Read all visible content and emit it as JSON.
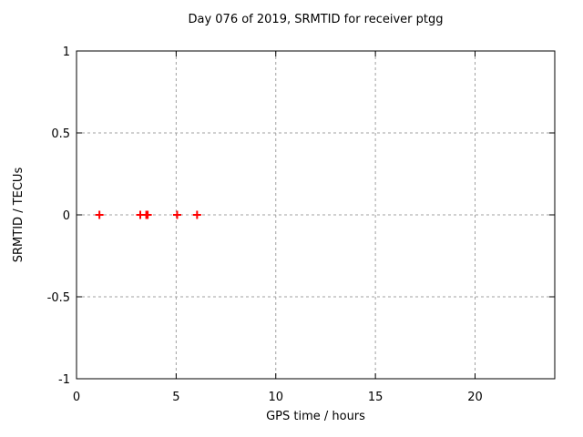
{
  "chart_data": {
    "type": "scatter",
    "title": "Day 076 of 2019, SRMTID for receiver ptgg",
    "xlabel": "GPS time / hours",
    "ylabel": "SRMTID / TECUs",
    "xlim": [
      0,
      24
    ],
    "ylim": [
      -1,
      1
    ],
    "xticks": [
      0,
      5,
      10,
      15,
      20
    ],
    "xtick_labels": [
      "0",
      "5",
      "10",
      "15",
      "20"
    ],
    "yticks": [
      -1,
      -0.5,
      0,
      0.5,
      1
    ],
    "ytick_labels": [
      "-1",
      "-0.5",
      "0",
      "0.5",
      "1"
    ],
    "grid": true,
    "legend_position": "none",
    "series": [
      {
        "name": "SRMTID",
        "marker": "plus",
        "x": [
          1.15,
          3.2,
          3.5,
          3.57,
          5.05,
          6.05
        ],
        "y": [
          0,
          0,
          0,
          0,
          0,
          0
        ]
      }
    ]
  },
  "colors": {
    "marker": "#ff0000",
    "grid": "#a0a0a0",
    "frame": "#000000",
    "background": "#ffffff"
  }
}
